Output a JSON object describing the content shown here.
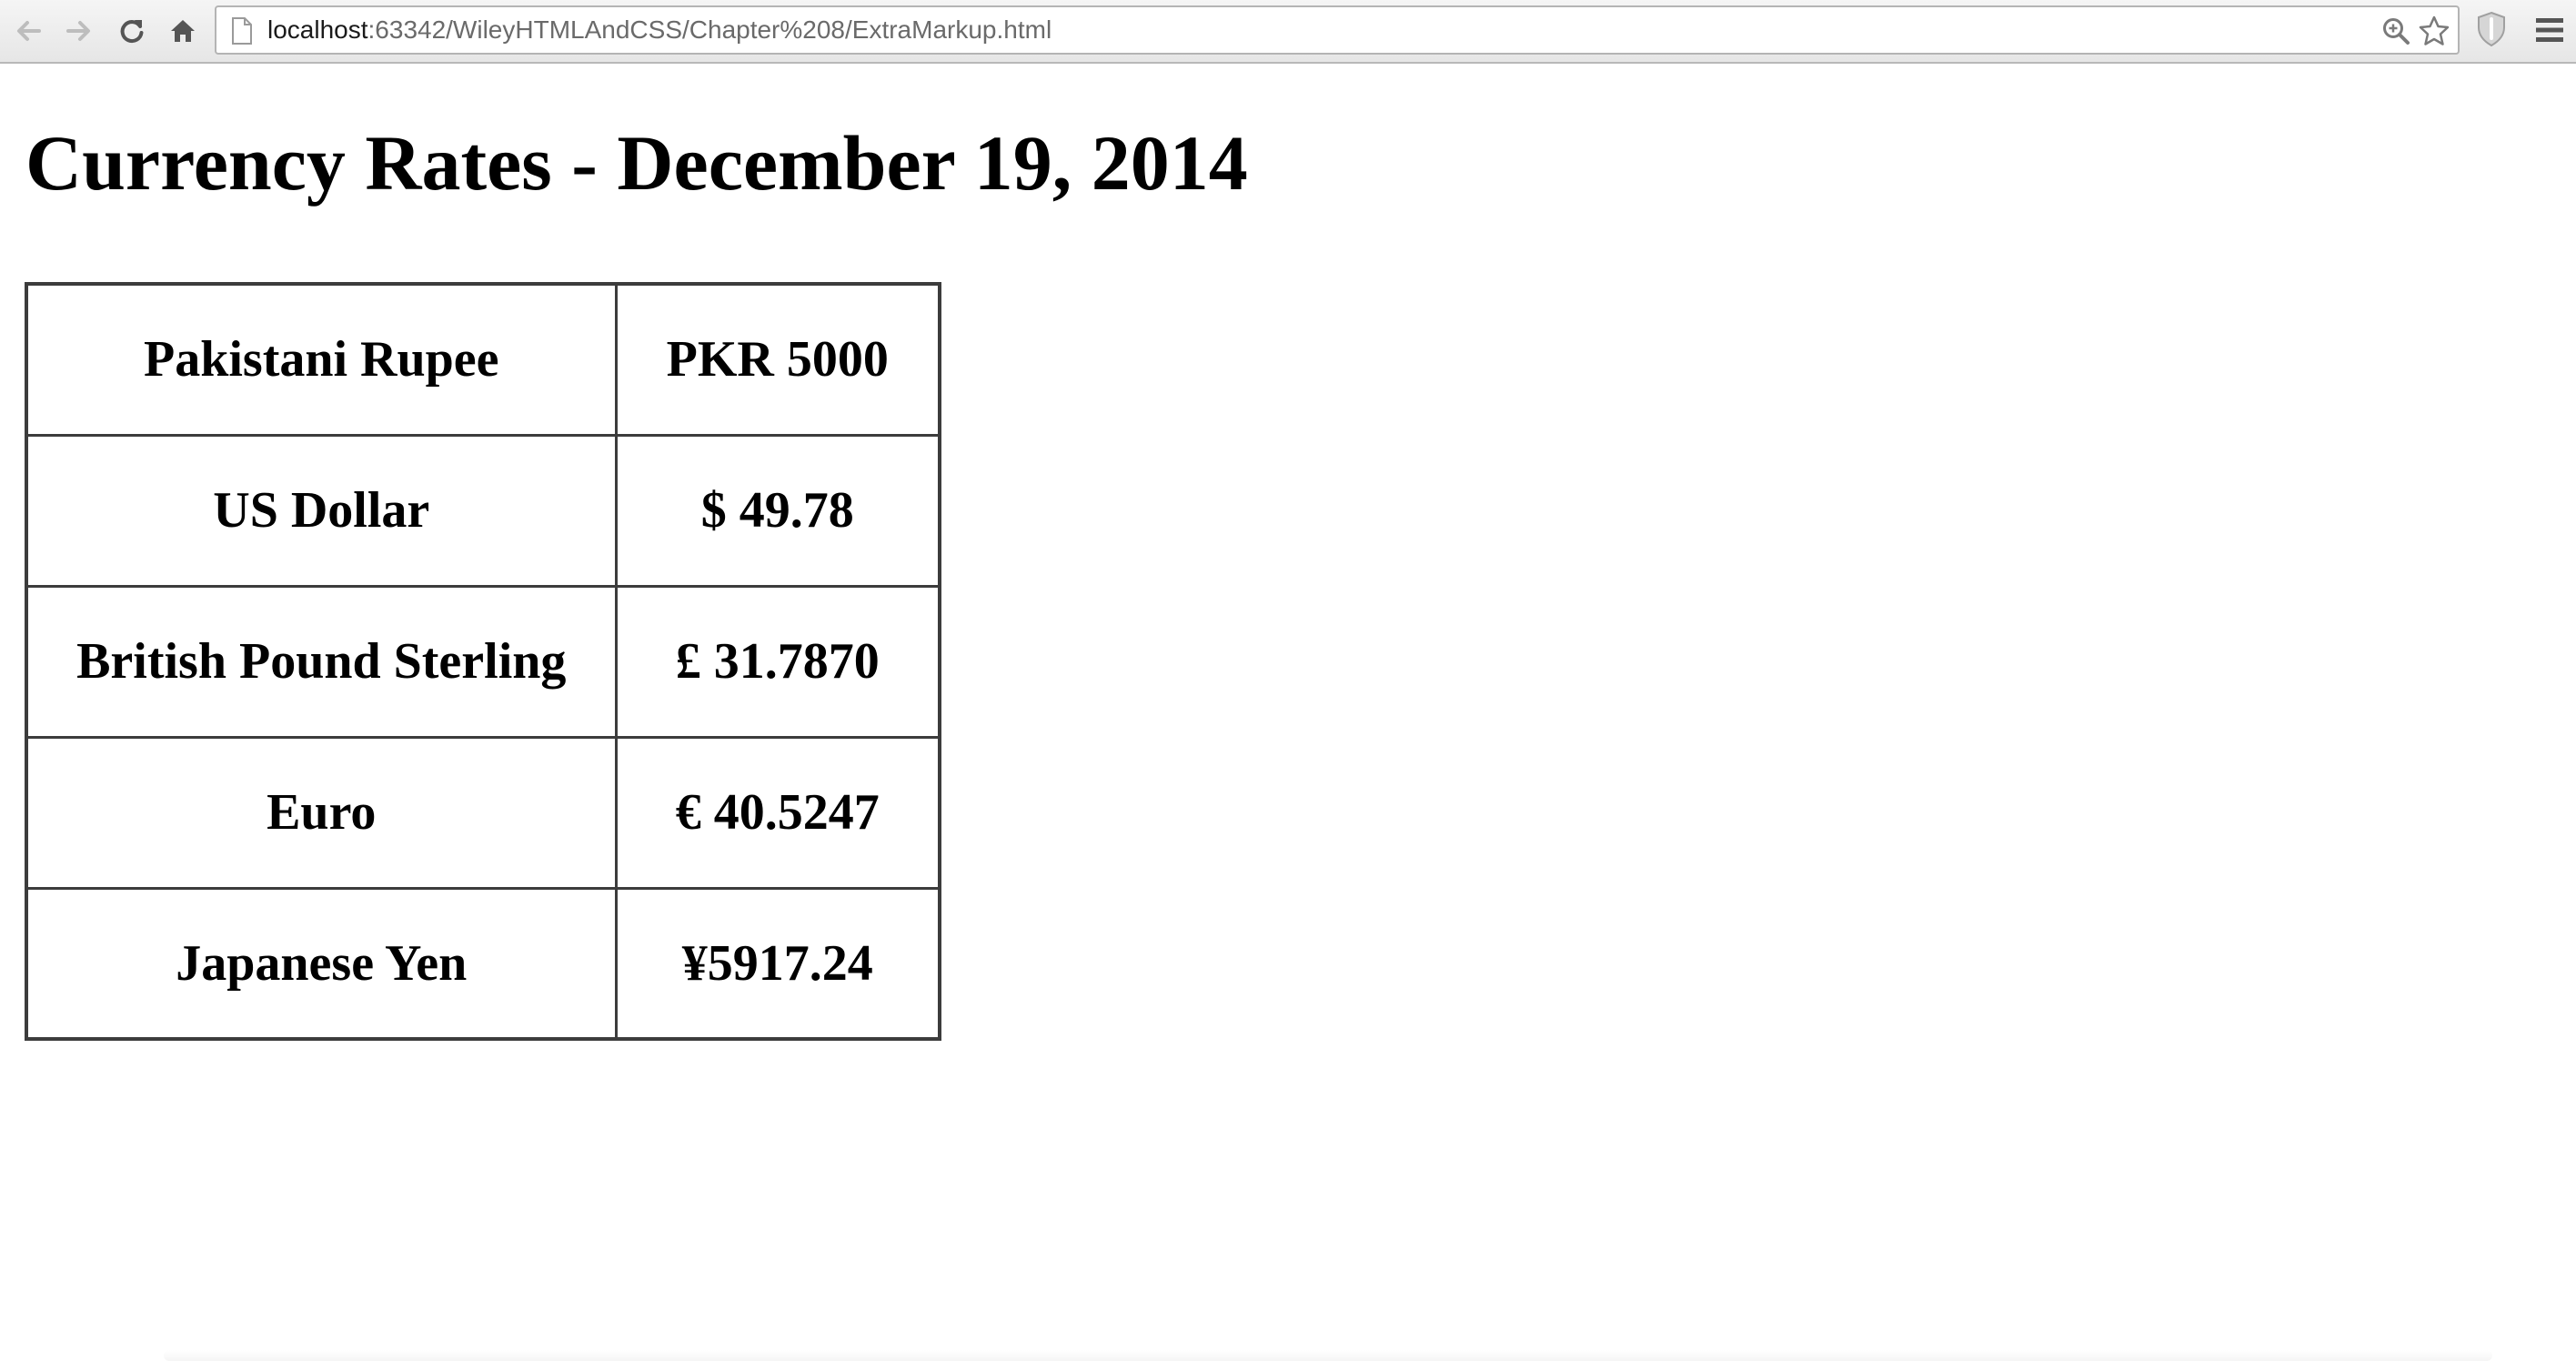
{
  "browser": {
    "url_host": "localhost",
    "url_rest": ":63342/WileyHTMLAndCSS/Chapter%208/ExtraMarkup.html",
    "icons": {
      "back": "arrow-left-icon",
      "forward": "arrow-right-icon",
      "reload": "reload-icon",
      "home": "home-icon",
      "page": "page-icon",
      "zoom": "zoom-icon",
      "bookmark": "star-icon",
      "extension": "shield-icon",
      "menu": "hamburger-menu-icon"
    }
  },
  "page": {
    "title": "Currency Rates - December 19, 2014",
    "rates": [
      {
        "currency": "Pakistani Rupee",
        "rate": "PKR 5000"
      },
      {
        "currency": "US Dollar",
        "rate": "$ 49.78"
      },
      {
        "currency": "British Pound Sterling",
        "rate": "£ 31.7870"
      },
      {
        "currency": "Euro",
        "rate": "€ 40.5247"
      },
      {
        "currency": "Japanese Yen",
        "rate": "¥5917.24"
      }
    ]
  },
  "colors": {
    "table_border": "#3c3c3c",
    "toolbar_bg": "#eeeeee",
    "text": "#000000"
  }
}
